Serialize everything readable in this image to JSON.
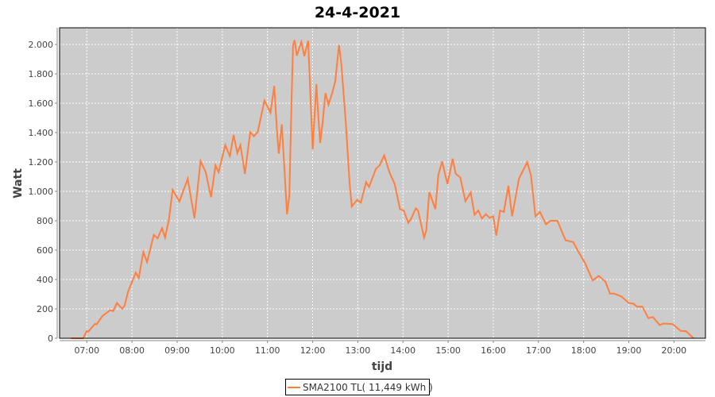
{
  "chart_data": {
    "type": "line",
    "title": "24-4-2021",
    "xlabel": "tijd",
    "ylabel": "Watt",
    "xlim": [
      "06:25",
      "20:45"
    ],
    "ylim": [
      0,
      2100
    ],
    "x_ticks": [
      "07:00",
      "08:00",
      "09:00",
      "10:00",
      "11:00",
      "12:00",
      "13:00",
      "14:00",
      "15:00",
      "16:00",
      "17:00",
      "18:00",
      "19:00",
      "20:00"
    ],
    "y_ticks": [
      0,
      200,
      400,
      600,
      800,
      1000,
      1200,
      1400,
      1600,
      1800,
      2000
    ],
    "y_tick_labels": [
      "0",
      "200",
      "400",
      "600",
      "800",
      "1.000",
      "1.200",
      "1.400",
      "1.600",
      "1.800",
      "2.000"
    ],
    "grid": true,
    "legend_position": "bottom",
    "colors": {
      "series": "#ff7f3f",
      "plot_background": "#cccccc",
      "grid": "#ffffff"
    },
    "series": [
      {
        "name": "SMA2100 TL( 11,449 kWh )",
        "points": [
          [
            "06:39",
            0
          ],
          [
            "06:55",
            0
          ],
          [
            "07:00",
            50
          ],
          [
            "07:02",
            45
          ],
          [
            "07:11",
            99
          ],
          [
            "07:13",
            95
          ],
          [
            "07:21",
            153
          ],
          [
            "07:31",
            191
          ],
          [
            "07:35",
            185
          ],
          [
            "07:40",
            240
          ],
          [
            "07:47",
            200
          ],
          [
            "07:50",
            220
          ],
          [
            "07:55",
            320
          ],
          [
            "08:00",
            384
          ],
          [
            "08:05",
            447
          ],
          [
            "08:09",
            410
          ],
          [
            "08:15",
            587
          ],
          [
            "08:20",
            519
          ],
          [
            "08:29",
            703
          ],
          [
            "08:34",
            680
          ],
          [
            "08:40",
            750
          ],
          [
            "08:44",
            685
          ],
          [
            "08:49",
            807
          ],
          [
            "08:54",
            1011
          ],
          [
            "09:03",
            930
          ],
          [
            "09:14",
            1086
          ],
          [
            "09:23",
            816
          ],
          [
            "09:31",
            1207
          ],
          [
            "09:38",
            1130
          ],
          [
            "09:45",
            960
          ],
          [
            "09:51",
            1177
          ],
          [
            "09:55",
            1130
          ],
          [
            "10:04",
            1315
          ],
          [
            "10:10",
            1240
          ],
          [
            "10:15",
            1384
          ],
          [
            "10:20",
            1260
          ],
          [
            "10:24",
            1315
          ],
          [
            "10:30",
            1119
          ],
          [
            "10:37",
            1402
          ],
          [
            "10:42",
            1375
          ],
          [
            "10:47",
            1405
          ],
          [
            "10:56",
            1618
          ],
          [
            "11:04",
            1535
          ],
          [
            "11:09",
            1717
          ],
          [
            "11:13",
            1384
          ],
          [
            "11:15",
            1257
          ],
          [
            "11:19",
            1456
          ],
          [
            "11:24",
            1024
          ],
          [
            "11:26",
            843
          ],
          [
            "11:29",
            970
          ],
          [
            "11:32",
            1618
          ],
          [
            "11:34",
            1997
          ],
          [
            "11:36",
            2030
          ],
          [
            "11:39",
            1924
          ],
          [
            "11:45",
            2018
          ],
          [
            "11:49",
            1920
          ],
          [
            "11:54",
            2025
          ],
          [
            "11:56",
            1771
          ],
          [
            "12:00",
            1285
          ],
          [
            "12:01",
            1380
          ],
          [
            "12:05",
            1730
          ],
          [
            "12:07",
            1550
          ],
          [
            "12:10",
            1330
          ],
          [
            "12:13",
            1460
          ],
          [
            "12:17",
            1669
          ],
          [
            "12:21",
            1590
          ],
          [
            "12:26",
            1670
          ],
          [
            "12:30",
            1750
          ],
          [
            "12:35",
            1997
          ],
          [
            "12:38",
            1870
          ],
          [
            "12:44",
            1474
          ],
          [
            "12:49",
            1059
          ],
          [
            "12:52",
            897
          ],
          [
            "12:59",
            942
          ],
          [
            "13:04",
            923
          ],
          [
            "13:11",
            1063
          ],
          [
            "13:15",
            1030
          ],
          [
            "13:24",
            1153
          ],
          [
            "13:29",
            1177
          ],
          [
            "13:35",
            1245
          ],
          [
            "13:42",
            1130
          ],
          [
            "13:49",
            1050
          ],
          [
            "13:56",
            879
          ],
          [
            "14:01",
            870
          ],
          [
            "14:07",
            785
          ],
          [
            "14:11",
            816
          ],
          [
            "14:17",
            885
          ],
          [
            "14:20",
            870
          ],
          [
            "14:28",
            685
          ],
          [
            "14:31",
            735
          ],
          [
            "14:35",
            996
          ],
          [
            "14:43",
            879
          ],
          [
            "14:47",
            1113
          ],
          [
            "14:52",
            1204
          ],
          [
            "14:59",
            1050
          ],
          [
            "15:06",
            1222
          ],
          [
            "15:10",
            1120
          ],
          [
            "15:16",
            1095
          ],
          [
            "15:23",
            933
          ],
          [
            "15:30",
            993
          ],
          [
            "15:35",
            840
          ],
          [
            "15:40",
            870
          ],
          [
            "15:45",
            815
          ],
          [
            "15:50",
            845
          ],
          [
            "15:55",
            820
          ],
          [
            "16:00",
            830
          ],
          [
            "16:04",
            699
          ],
          [
            "16:09",
            870
          ],
          [
            "16:14",
            860
          ],
          [
            "16:20",
            1038
          ],
          [
            "16:25",
            830
          ],
          [
            "16:34",
            1086
          ],
          [
            "16:45",
            1198
          ],
          [
            "16:50",
            1110
          ],
          [
            "16:56",
            830
          ],
          [
            "17:02",
            860
          ],
          [
            "17:10",
            775
          ],
          [
            "17:16",
            800
          ],
          [
            "17:25",
            800
          ],
          [
            "17:36",
            667
          ],
          [
            "17:46",
            655
          ],
          [
            "17:53",
            590
          ],
          [
            "18:02",
            510
          ],
          [
            "18:12",
            393
          ],
          [
            "18:20",
            425
          ],
          [
            "18:29",
            385
          ],
          [
            "18:35",
            303
          ],
          [
            "18:40",
            305
          ],
          [
            "18:50",
            285
          ],
          [
            "19:00",
            240
          ],
          [
            "19:06",
            235
          ],
          [
            "19:11",
            215
          ],
          [
            "19:18",
            215
          ],
          [
            "19:26",
            137
          ],
          [
            "19:32",
            145
          ],
          [
            "19:41",
            90
          ],
          [
            "19:46",
            100
          ],
          [
            "19:58",
            97
          ],
          [
            "20:09",
            50
          ],
          [
            "20:16",
            48
          ],
          [
            "20:26",
            0
          ]
        ]
      }
    ]
  }
}
